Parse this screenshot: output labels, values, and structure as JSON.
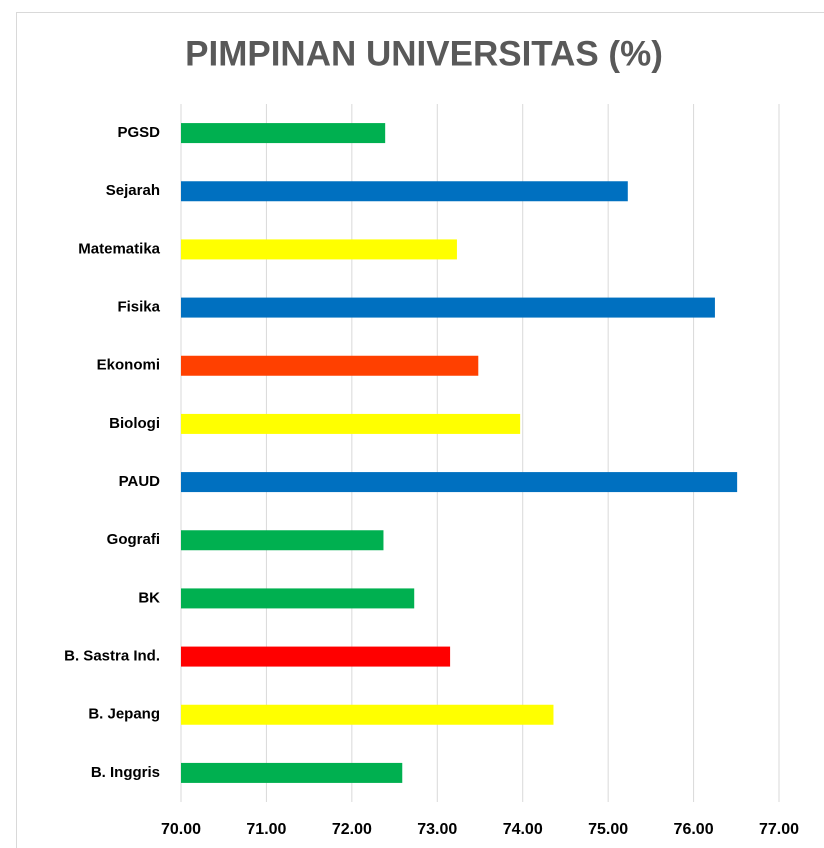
{
  "chart_data": {
    "type": "hbar",
    "title": "PIMPINAN UNIVERSITAS (%)",
    "categories": [
      "PGSD",
      "Sejarah",
      "Matematika",
      "Fisika",
      "Ekonomi",
      "Biologi",
      "PAUD",
      "Gografi",
      "BK",
      "B. Sastra Ind.",
      "B. Jepang",
      "B. Inggris"
    ],
    "values": [
      72.39,
      75.23,
      73.23,
      76.25,
      73.48,
      73.97,
      76.51,
      72.37,
      72.73,
      73.15,
      74.36,
      72.59
    ],
    "colors": [
      "#00b050",
      "#0070c0",
      "#ffff00",
      "#0070c0",
      "#ff4000",
      "#ffff00",
      "#0070c0",
      "#00b050",
      "#00b050",
      "#ff0000",
      "#ffff00",
      "#00b050"
    ],
    "xlim": [
      70,
      77
    ],
    "xticks": [
      {
        "value": 70,
        "label": "70.00"
      },
      {
        "value": 71,
        "label": "71.00"
      },
      {
        "value": 72,
        "label": "72.00"
      },
      {
        "value": 73,
        "label": "73.00"
      },
      {
        "value": 74,
        "label": "74.00"
      },
      {
        "value": 75,
        "label": "75.00"
      },
      {
        "value": 76,
        "label": "76.00"
      },
      {
        "value": 77,
        "label": "77.00"
      }
    ],
    "grid": true
  }
}
